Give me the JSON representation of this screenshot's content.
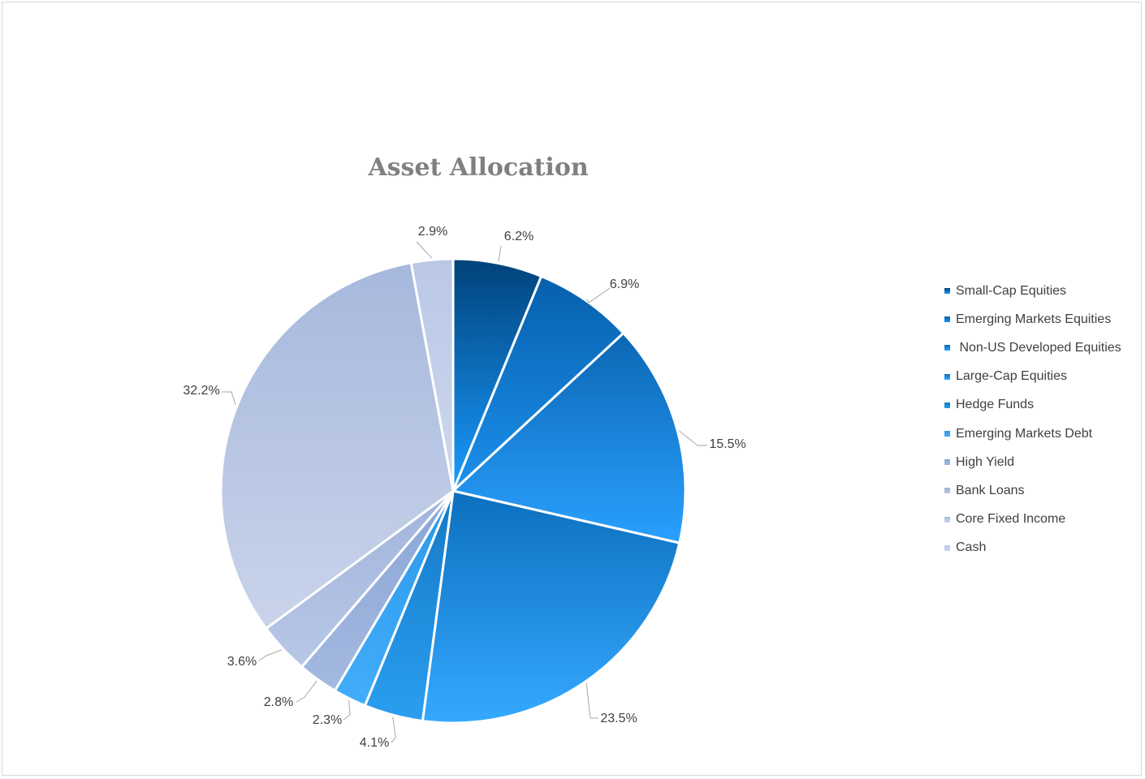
{
  "chart_data": {
    "type": "pie",
    "title": "Asset Allocation",
    "legend_position": "right",
    "slices": [
      {
        "name": "Small-Cap Equities",
        "value": 6.2,
        "label": "6.2%",
        "color_top": "#00427a",
        "color_bottom": "#1a9bff"
      },
      {
        "name": "Emerging Markets Equities",
        "value": 6.9,
        "label": "6.9%",
        "color_top": "#0660ad",
        "color_bottom": "#1c90ec"
      },
      {
        "name": " Non-US Developed Equities",
        "value": 15.5,
        "label": "15.5%",
        "color_top": "#0b67b4",
        "color_bottom": "#2aa0ff"
      },
      {
        "name": "Large-Cap Equities",
        "value": 23.5,
        "label": "23.5%",
        "color_top": "#0c6fbe",
        "color_bottom": "#35a9ff"
      },
      {
        "name": "Hedge Funds",
        "value": 4.1,
        "label": "4.1%",
        "color_top": "#1479c7",
        "color_bottom": "#2b9ef0"
      },
      {
        "name": "Emerging Markets Debt",
        "value": 2.3,
        "label": "2.3%",
        "color_top": "#2c98e8",
        "color_bottom": "#42adfb"
      },
      {
        "name": "High Yield",
        "value": 2.8,
        "label": "2.8%",
        "color_top": "#8aa5d6",
        "color_bottom": "#a4b9e0"
      },
      {
        "name": "Bank Loans",
        "value": 3.6,
        "label": "3.6%",
        "color_top": "#a1b4dc",
        "color_bottom": "#b8c7e6"
      },
      {
        "name": "Core Fixed Income",
        "value": 32.2,
        "label": "32.2%",
        "color_top": "#a7b8dd",
        "color_bottom": "#c9d4ea"
      },
      {
        "name": "Cash",
        "value": 2.9,
        "label": "2.9%",
        "color_top": "#bac8e6",
        "color_bottom": "#cdd7ee"
      }
    ]
  }
}
